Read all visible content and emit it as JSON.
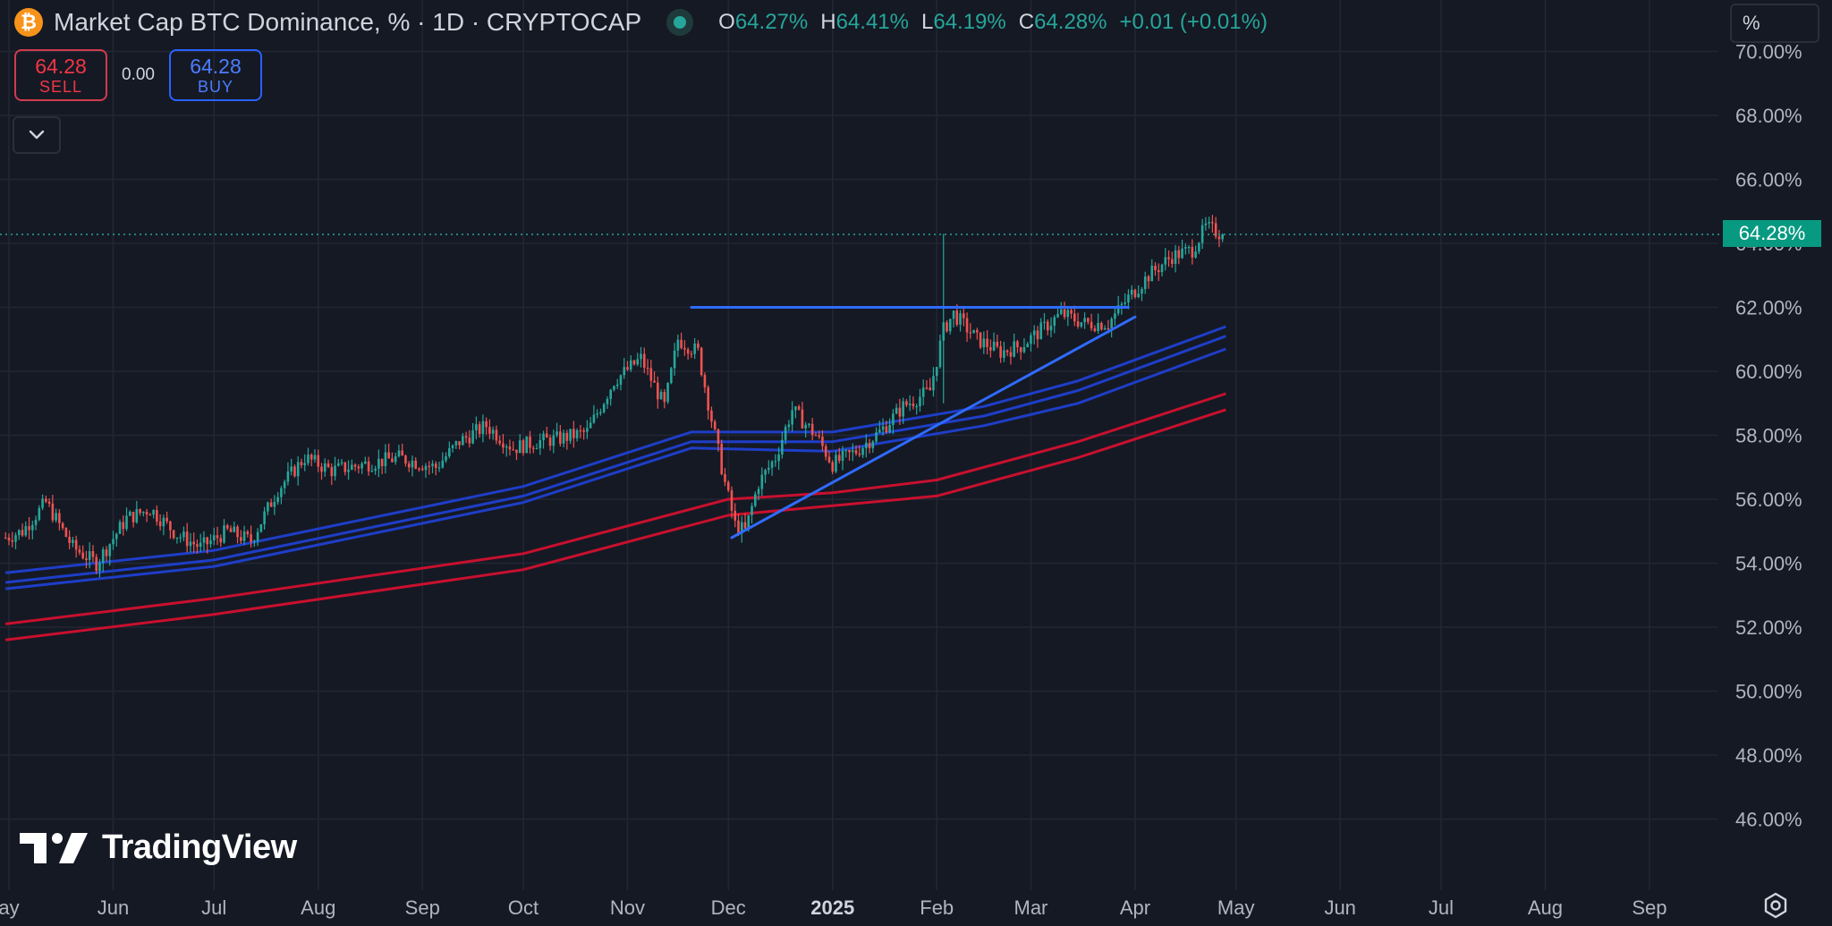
{
  "header": {
    "symbol_icon": "bitcoin-icon",
    "symbol_letter": "₿",
    "title": "Market Cap BTC Dominance, % · 1D · CRYPTOCAP",
    "ohlc": {
      "o_label": "O",
      "o_value": "64.27%",
      "h_label": "H",
      "h_value": "64.41%",
      "l_label": "L",
      "l_value": "64.19%",
      "c_label": "C",
      "c_value": "64.28%",
      "change": "+0.01 (+0.01%)"
    }
  },
  "trade": {
    "sell_price": "64.28",
    "sell_label": "SELL",
    "spread": "0.00",
    "buy_price": "64.28",
    "buy_label": "BUY"
  },
  "scale_mode": "%",
  "last_price_tag": "64.28%",
  "watermark": "TradingView",
  "colors": {
    "background": "#151924",
    "up": "#26a69a",
    "down": "#ef5350",
    "blue_ma": "#1e3ec8",
    "red_ma": "#c8102e",
    "trendline": "#2f6bff",
    "price_tag": "#089981"
  },
  "chart_data": {
    "type": "candlestick",
    "title": "Market Cap BTC Dominance, %",
    "interval": "1D",
    "ylim": [
      45,
      70.5
    ],
    "y_ticks": [
      "70.00%",
      "68.00%",
      "66.00%",
      "64.00%",
      "62.00%",
      "60.00%",
      "58.00%",
      "56.00%",
      "54.00%",
      "52.00%",
      "50.00%",
      "48.00%",
      "46.00%"
    ],
    "x_ticks": [
      {
        "label": "ay",
        "date": "2024-05-01"
      },
      {
        "label": "Jun",
        "date": "2024-06-01"
      },
      {
        "label": "Jul",
        "date": "2024-07-01"
      },
      {
        "label": "Aug",
        "date": "2024-08-01"
      },
      {
        "label": "Sep",
        "date": "2024-09-01"
      },
      {
        "label": "Oct",
        "date": "2024-10-01"
      },
      {
        "label": "Nov",
        "date": "2024-11-01"
      },
      {
        "label": "Dec",
        "date": "2024-12-01"
      },
      {
        "label": "2025",
        "date": "2025-01-01",
        "bold": true
      },
      {
        "label": "Feb",
        "date": "2025-02-01"
      },
      {
        "label": "Mar",
        "date": "2025-03-01"
      },
      {
        "label": "Apr",
        "date": "2025-04-01"
      },
      {
        "label": "May",
        "date": "2025-05-01"
      },
      {
        "label": "Jun",
        "date": "2025-06-01"
      },
      {
        "label": "Jul",
        "date": "2025-07-01"
      },
      {
        "label": "Aug",
        "date": "2025-08-01"
      },
      {
        "label": "Sep",
        "date": "2025-09-01"
      }
    ],
    "price_keypoints": [
      [
        "2024-04-30",
        54.8
      ],
      [
        "2024-05-05",
        55.0
      ],
      [
        "2024-05-12",
        55.9
      ],
      [
        "2024-05-20",
        54.5
      ],
      [
        "2024-05-27",
        54.0
      ],
      [
        "2024-06-05",
        55.4
      ],
      [
        "2024-06-12",
        55.7
      ],
      [
        "2024-06-20",
        54.9
      ],
      [
        "2024-06-27",
        54.5
      ],
      [
        "2024-07-05",
        55.0
      ],
      [
        "2024-07-12",
        54.7
      ],
      [
        "2024-07-20",
        56.3
      ],
      [
        "2024-07-28",
        57.3
      ],
      [
        "2024-08-05",
        56.9
      ],
      [
        "2024-08-15",
        57.1
      ],
      [
        "2024-08-25",
        57.3
      ],
      [
        "2024-09-05",
        57.0
      ],
      [
        "2024-09-12",
        57.8
      ],
      [
        "2024-09-20",
        58.3
      ],
      [
        "2024-09-28",
        57.6
      ],
      [
        "2024-10-05",
        57.8
      ],
      [
        "2024-10-12",
        57.9
      ],
      [
        "2024-10-20",
        58.1
      ],
      [
        "2024-10-28",
        59.7
      ],
      [
        "2024-11-05",
        60.4
      ],
      [
        "2024-11-12",
        58.9
      ],
      [
        "2024-11-16",
        61.0
      ],
      [
        "2024-11-22",
        60.6
      ],
      [
        "2024-11-26",
        58.5
      ],
      [
        "2024-11-30",
        56.5
      ],
      [
        "2024-12-03",
        55.2
      ],
      [
        "2024-12-06",
        55.0
      ],
      [
        "2024-12-10",
        56.5
      ],
      [
        "2024-12-15",
        57.3
      ],
      [
        "2024-12-20",
        58.8
      ],
      [
        "2024-12-27",
        58.0
      ],
      [
        "2025-01-01",
        57.1
      ],
      [
        "2025-01-08",
        57.5
      ],
      [
        "2025-01-15",
        58.1
      ],
      [
        "2025-01-22",
        58.9
      ],
      [
        "2025-01-30",
        59.4
      ],
      [
        "2025-02-03",
        61.3
      ],
      [
        "2025-02-06",
        61.8
      ],
      [
        "2025-02-13",
        61.0
      ],
      [
        "2025-02-20",
        60.6
      ],
      [
        "2025-02-26",
        60.8
      ],
      [
        "2025-03-03",
        61.2
      ],
      [
        "2025-03-10",
        61.8
      ],
      [
        "2025-03-17",
        61.5
      ],
      [
        "2025-03-24",
        61.5
      ],
      [
        "2025-03-30",
        62.3
      ],
      [
        "2025-04-05",
        63.0
      ],
      [
        "2025-04-12",
        63.6
      ],
      [
        "2025-04-18",
        63.8
      ],
      [
        "2025-04-22",
        64.5
      ],
      [
        "2025-04-27",
        64.28
      ]
    ],
    "spikes": [
      {
        "date": "2025-02-03",
        "high": 64.3,
        "low": 59.0
      }
    ],
    "moving_averages": [
      {
        "color": "#1e3ec8",
        "points": [
          [
            "2024-04-30",
            53.4
          ],
          [
            "2024-07-01",
            54.1
          ],
          [
            "2024-10-01",
            56.1
          ],
          [
            "2024-11-20",
            57.8
          ],
          [
            "2025-01-01",
            57.8
          ],
          [
            "2025-02-15",
            58.6
          ],
          [
            "2025-03-15",
            59.4
          ],
          [
            "2025-04-28",
            61.1
          ]
        ]
      },
      {
        "color": "#1e3ec8",
        "points": [
          [
            "2024-04-30",
            53.7
          ],
          [
            "2024-07-01",
            54.4
          ],
          [
            "2024-10-01",
            56.4
          ],
          [
            "2024-11-20",
            58.1
          ],
          [
            "2025-01-01",
            58.1
          ],
          [
            "2025-02-15",
            58.9
          ],
          [
            "2025-03-15",
            59.7
          ],
          [
            "2025-04-28",
            61.4
          ]
        ]
      },
      {
        "color": "#1e3ec8",
        "points": [
          [
            "2024-04-30",
            53.2
          ],
          [
            "2024-07-01",
            53.9
          ],
          [
            "2024-10-01",
            55.9
          ],
          [
            "2024-11-20",
            57.6
          ],
          [
            "2025-01-01",
            57.5
          ],
          [
            "2025-02-15",
            58.3
          ],
          [
            "2025-03-15",
            59.0
          ],
          [
            "2025-04-28",
            60.7
          ]
        ]
      },
      {
        "color": "#c8102e",
        "points": [
          [
            "2024-04-30",
            52.1
          ],
          [
            "2024-07-01",
            52.9
          ],
          [
            "2024-10-01",
            54.3
          ],
          [
            "2024-12-01",
            56.0
          ],
          [
            "2025-01-01",
            56.2
          ],
          [
            "2025-02-01",
            56.6
          ],
          [
            "2025-03-15",
            57.8
          ],
          [
            "2025-04-28",
            59.3
          ]
        ]
      },
      {
        "color": "#c8102e",
        "points": [
          [
            "2024-04-30",
            51.6
          ],
          [
            "2024-07-01",
            52.4
          ],
          [
            "2024-10-01",
            53.8
          ],
          [
            "2024-12-01",
            55.5
          ],
          [
            "2025-01-01",
            55.8
          ],
          [
            "2025-02-01",
            56.1
          ],
          [
            "2025-03-15",
            57.3
          ],
          [
            "2025-04-28",
            58.8
          ]
        ]
      }
    ],
    "drawings": [
      {
        "type": "horizontal",
        "from": [
          "2024-11-20",
          62.0
        ],
        "to": [
          "2025-03-30",
          62.0
        ],
        "color": "#2f6bff"
      },
      {
        "type": "trendline",
        "from": [
          "2024-12-02",
          54.8
        ],
        "to": [
          "2025-04-01",
          61.7
        ],
        "color": "#2f6bff"
      }
    ],
    "last_price": 64.28,
    "last_price_line_color": "#26a69a"
  }
}
